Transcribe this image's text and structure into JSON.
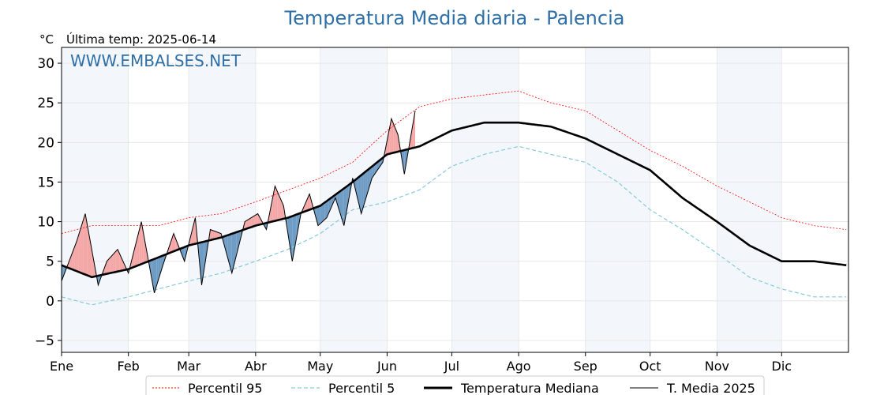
{
  "chart_data": {
    "type": "line",
    "title": "Temperatura Media diaria - Palencia",
    "unit_label": "°C",
    "last_temp": "Última temp: 2025-06-14",
    "watermark": "WWW.EMBALSES.NET",
    "ylim": [
      -6.5,
      32
    ],
    "yticks": [
      -5,
      0,
      5,
      10,
      15,
      20,
      25,
      30
    ],
    "xlim": [
      1,
      366
    ],
    "month_labels": [
      "Ene",
      "Feb",
      "Mar",
      "Abr",
      "May",
      "Jun",
      "Jul",
      "Ago",
      "Sep",
      "Oct",
      "Nov",
      "Dic"
    ],
    "month_start_days": [
      1,
      32,
      60,
      91,
      121,
      152,
      182,
      213,
      244,
      274,
      305,
      335
    ],
    "grid": true,
    "legend_position": "bottom-center",
    "colors": {
      "p95": "#ff0000",
      "p5": "#87c8dc",
      "median": "#000000",
      "current": "#000000",
      "above_fill": "#f4a7a7",
      "below_fill": "#6f9cc4",
      "month_band": "#f3f7fb",
      "title": "#2e6fa7",
      "watermark": "#2e6fa7"
    },
    "series": [
      {
        "name": "Percentil 95",
        "style": "dotted",
        "x": [
          1,
          15,
          32,
          46,
          60,
          75,
          91,
          106,
          121,
          136,
          152,
          167,
          182,
          197,
          213,
          228,
          244,
          259,
          274,
          289,
          305,
          320,
          335,
          350,
          365
        ],
        "values": [
          8.5,
          9.5,
          9.5,
          9.5,
          10.5,
          11.0,
          12.5,
          14.0,
          15.5,
          17.5,
          21.5,
          24.5,
          25.5,
          26.0,
          26.5,
          25.0,
          24.0,
          21.5,
          19.0,
          17.0,
          14.5,
          12.5,
          10.5,
          9.5,
          9.0
        ]
      },
      {
        "name": "Percentil 5",
        "style": "dashed",
        "x": [
          1,
          15,
          32,
          46,
          60,
          75,
          91,
          106,
          121,
          136,
          152,
          167,
          182,
          197,
          213,
          228,
          244,
          259,
          274,
          289,
          305,
          320,
          335,
          350,
          365
        ],
        "values": [
          0.5,
          -0.5,
          0.5,
          1.5,
          2.5,
          3.5,
          5.0,
          6.5,
          8.5,
          11.5,
          12.5,
          14.0,
          17.0,
          18.5,
          19.5,
          18.5,
          17.5,
          15.0,
          11.5,
          9.0,
          6.0,
          3.0,
          1.5,
          0.5,
          0.5
        ]
      },
      {
        "name": "Temperatura Mediana",
        "style": "thick",
        "x": [
          1,
          15,
          32,
          46,
          60,
          75,
          91,
          106,
          121,
          136,
          152,
          167,
          182,
          197,
          213,
          228,
          244,
          259,
          274,
          289,
          305,
          320,
          335,
          350,
          365
        ],
        "values": [
          4.5,
          3.0,
          4.0,
          5.5,
          7.0,
          8.0,
          9.5,
          10.5,
          12.0,
          15.0,
          18.5,
          19.5,
          21.5,
          22.5,
          22.5,
          22.0,
          20.5,
          18.5,
          16.5,
          13.0,
          10.0,
          7.0,
          5.0,
          5.0,
          4.5
        ]
      },
      {
        "name": "T. Media 2025",
        "style": "thin",
        "x": [
          1,
          8,
          12,
          18,
          22,
          27,
          32,
          38,
          44,
          48,
          53,
          58,
          63,
          66,
          70,
          75,
          80,
          86,
          92,
          96,
          100,
          104,
          108,
          112,
          116,
          120,
          124,
          128,
          132,
          136,
          140,
          145,
          150,
          154,
          157,
          160,
          165
        ],
        "values": [
          2.5,
          7.5,
          11.0,
          2.0,
          5.0,
          6.5,
          3.5,
          10.0,
          1.0,
          4.5,
          8.5,
          5.0,
          10.5,
          2.0,
          9.0,
          8.5,
          3.5,
          10.0,
          11.0,
          9.0,
          14.5,
          12.0,
          5.0,
          11.0,
          13.5,
          9.5,
          10.5,
          13.0,
          9.5,
          15.5,
          11.0,
          15.5,
          17.5,
          23.0,
          21.0,
          16.0,
          24.0
        ]
      }
    ]
  }
}
